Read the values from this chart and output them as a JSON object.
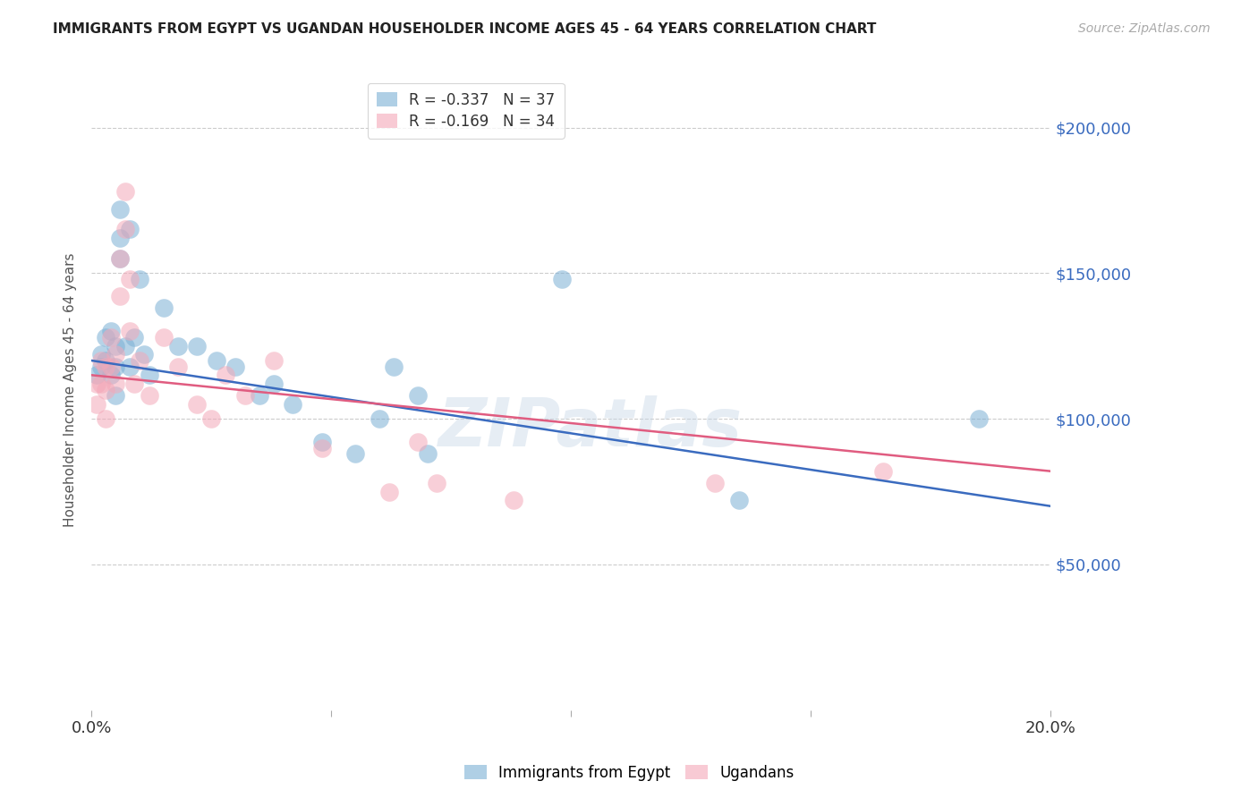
{
  "title": "IMMIGRANTS FROM EGYPT VS UGANDAN HOUSEHOLDER INCOME AGES 45 - 64 YEARS CORRELATION CHART",
  "source": "Source: ZipAtlas.com",
  "ylabel": "Householder Income Ages 45 - 64 years",
  "xlim": [
    0.0,
    0.2
  ],
  "ylim": [
    0,
    220000
  ],
  "yticks": [
    0,
    50000,
    100000,
    150000,
    200000
  ],
  "ytick_labels": [
    "",
    "$50,000",
    "$100,000",
    "$150,000",
    "$200,000"
  ],
  "xticks": [
    0.0,
    0.05,
    0.1,
    0.15,
    0.2
  ],
  "xtick_labels": [
    "0.0%",
    "",
    "",
    "",
    "20.0%"
  ],
  "background_color": "#ffffff",
  "grid_color": "#cccccc",
  "watermark": "ZIPatlas",
  "egypt_color": "#7bafd4",
  "uganda_color": "#f4a8b8",
  "egypt_line_color": "#3a6bbf",
  "uganda_line_color": "#e05c80",
  "egypt_R": -0.337,
  "egypt_N": 37,
  "uganda_R": -0.169,
  "uganda_N": 34,
  "egypt_x": [
    0.001,
    0.002,
    0.002,
    0.003,
    0.003,
    0.004,
    0.004,
    0.005,
    0.005,
    0.005,
    0.006,
    0.006,
    0.006,
    0.007,
    0.008,
    0.008,
    0.009,
    0.01,
    0.011,
    0.012,
    0.015,
    0.018,
    0.022,
    0.026,
    0.03,
    0.035,
    0.038,
    0.042,
    0.048,
    0.055,
    0.06,
    0.063,
    0.068,
    0.07,
    0.098,
    0.135,
    0.185
  ],
  "egypt_y": [
    115000,
    122000,
    118000,
    128000,
    120000,
    130000,
    115000,
    125000,
    118000,
    108000,
    162000,
    172000,
    155000,
    125000,
    165000,
    118000,
    128000,
    148000,
    122000,
    115000,
    138000,
    125000,
    125000,
    120000,
    118000,
    108000,
    112000,
    105000,
    92000,
    88000,
    100000,
    118000,
    108000,
    88000,
    148000,
    72000,
    100000
  ],
  "uganda_x": [
    0.001,
    0.001,
    0.002,
    0.002,
    0.003,
    0.003,
    0.003,
    0.004,
    0.004,
    0.005,
    0.005,
    0.006,
    0.006,
    0.007,
    0.007,
    0.008,
    0.008,
    0.009,
    0.01,
    0.012,
    0.015,
    0.018,
    0.022,
    0.025,
    0.028,
    0.032,
    0.038,
    0.048,
    0.062,
    0.068,
    0.072,
    0.088,
    0.13,
    0.165
  ],
  "uganda_y": [
    112000,
    105000,
    120000,
    112000,
    118000,
    110000,
    100000,
    128000,
    118000,
    122000,
    112000,
    155000,
    142000,
    178000,
    165000,
    148000,
    130000,
    112000,
    120000,
    108000,
    128000,
    118000,
    105000,
    100000,
    115000,
    108000,
    120000,
    90000,
    75000,
    92000,
    78000,
    72000,
    78000,
    82000
  ]
}
